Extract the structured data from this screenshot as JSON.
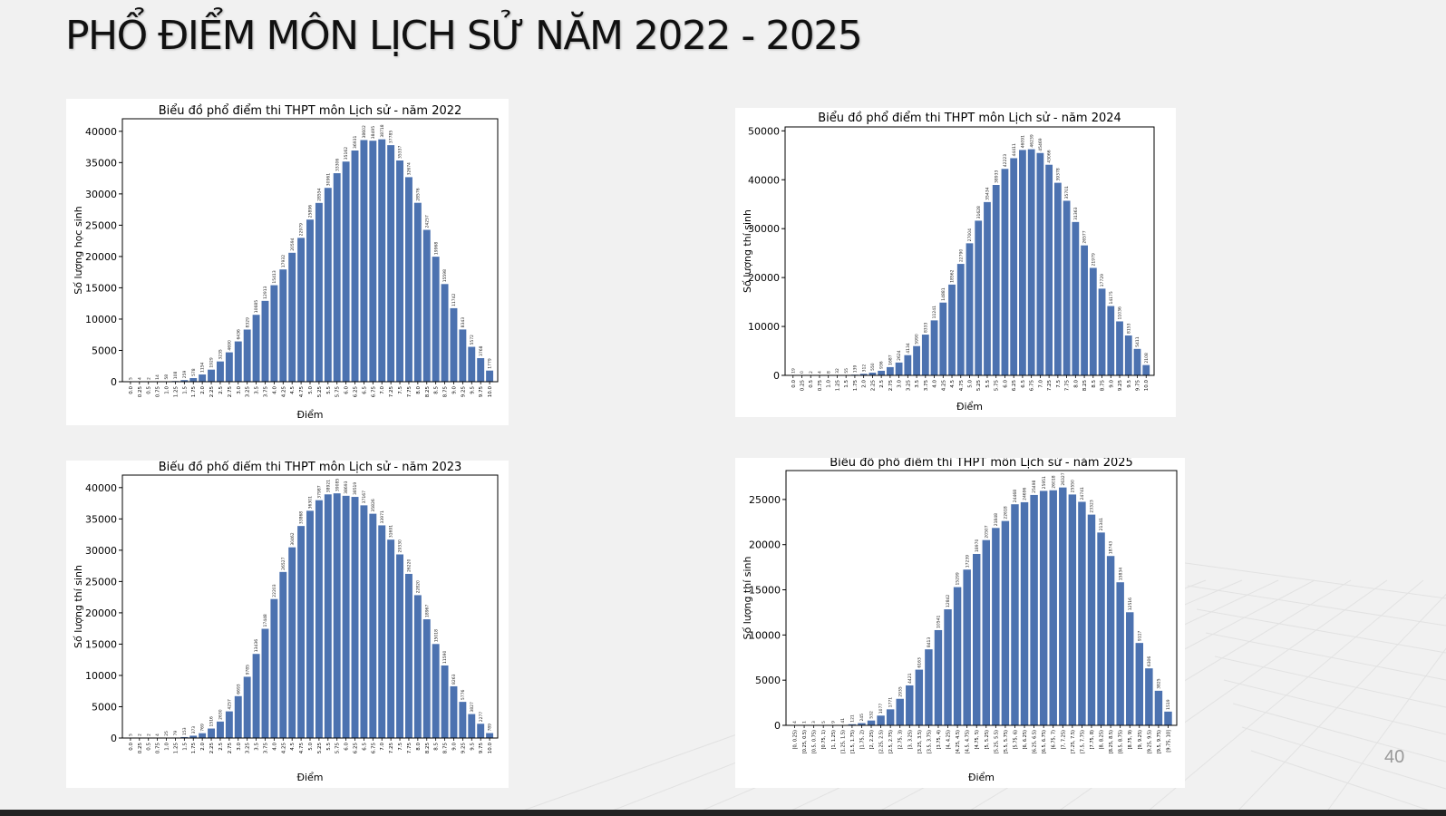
{
  "slide": {
    "title": "PHỔ ĐIỂM MÔN LỊCH SỬ NĂM 2022 - 2025",
    "page_number": "40"
  },
  "colors": {
    "bar": "#4c72b0",
    "background": "#f1f1f1",
    "panel": "#ffffff"
  },
  "chart_data": [
    {
      "type": "bar",
      "title": "Biểu đồ phổ điểm thi THPT môn Lịch sử - năm 2022",
      "xlabel": "Điểm",
      "ylabel": "Số lượng học sinh",
      "ylim": [
        0,
        42000
      ],
      "yticks": [
        0,
        5000,
        10000,
        15000,
        20000,
        25000,
        30000,
        35000,
        40000
      ],
      "categories": [
        "0.0",
        "0.25",
        "0.5",
        "0.75",
        "1.0",
        "1.25",
        "1.5",
        "1.75",
        "2.0",
        "2.25",
        "2.5",
        "2.75",
        "3.0",
        "3.25",
        "3.5",
        "3.75",
        "4.0",
        "4.25",
        "4.5",
        "4.75",
        "5.0",
        "5.25",
        "5.5",
        "5.75",
        "6.0",
        "6.25",
        "6.5",
        "6.75",
        "7.0",
        "7.25",
        "7.5",
        "7.75",
        "8.0",
        "8.25",
        "8.5",
        "8.75",
        "9.0",
        "9.25",
        "9.5",
        "9.75",
        "10.0"
      ],
      "values": [
        5,
        4,
        2,
        14,
        58,
        108,
        259,
        578,
        1154,
        1929,
        3235,
        4690,
        6436,
        8329,
        10685,
        12913,
        15413,
        17932,
        20594,
        22979,
        25896,
        28554,
        30961,
        33306,
        35162,
        36931,
        38602,
        38495,
        38718,
        37785,
        35337,
        32674,
        28576,
        24257,
        19968,
        15598,
        11742,
        8343,
        5572,
        3768,
        1779
      ],
      "grid": false,
      "legend": "none"
    },
    {
      "type": "bar",
      "title": "Biểu đồ phổ điểm thi THPT môn Lịch sử - năm 2023",
      "xlabel": "Điểm",
      "ylabel": "Số lượng thí sinh",
      "ylim": [
        0,
        42000
      ],
      "yticks": [
        0,
        5000,
        10000,
        15000,
        20000,
        25000,
        30000,
        35000,
        40000
      ],
      "categories": [
        "0.0",
        "0.25",
        "0.5",
        "0.75",
        "1.0",
        "1.25",
        "1.5",
        "1.75",
        "2.0",
        "2.25",
        "2.5",
        "2.75",
        "3.0",
        "3.25",
        "3.5",
        "3.75",
        "4.0",
        "4.25",
        "4.5",
        "4.75",
        "5.0",
        "5.25",
        "5.5",
        "5.75",
        "6.0",
        "6.25",
        "6.5",
        "6.75",
        "7.0",
        "7.25",
        "7.5",
        "7.75",
        "8.0",
        "8.25",
        "8.5",
        "8.75",
        "9.0",
        "9.25",
        "9.5",
        "9.75",
        "10.0"
      ],
      "values": [
        5,
        2,
        2,
        4,
        25,
        79,
        153,
        373,
        769,
        1516,
        2630,
        4257,
        6693,
        9785,
        13436,
        17448,
        22203,
        26527,
        30462,
        33868,
        36301,
        37987,
        38921,
        39085,
        38693,
        38519,
        37167,
        35826,
        33971,
        31691,
        29330,
        26220,
        22820,
        18967,
        15018,
        11590,
        8263,
        5776,
        3827,
        2277,
        789
      ],
      "grid": false,
      "legend": "none"
    },
    {
      "type": "bar",
      "title": "Biểu đồ phổ điểm thi THPT môn Lịch sử - năm 2024",
      "xlabel": "Điểm",
      "ylabel": "Số lượng thí sinh",
      "ylim": [
        0,
        50800
      ],
      "yticks": [
        0,
        10000,
        20000,
        30000,
        40000,
        50000
      ],
      "categories": [
        "0.0",
        "0.25",
        "0.5",
        "0.75",
        "1.0",
        "1.25",
        "1.5",
        "1.75",
        "2.0",
        "2.25",
        "2.5",
        "2.75",
        "3.0",
        "3.25",
        "3.5",
        "3.75",
        "4.0",
        "4.25",
        "4.5",
        "4.75",
        "5.0",
        "5.25",
        "5.5",
        "5.75",
        "6.0",
        "6.25",
        "6.5",
        "6.75",
        "7.0",
        "7.25",
        "7.5",
        "7.75",
        "8.0",
        "8.25",
        "8.5",
        "8.75",
        "9.0",
        "9.25",
        "9.5",
        "9.75",
        "10.0"
      ],
      "values": [
        19,
        0,
        2,
        4,
        8,
        32,
        55,
        139,
        312,
        550,
        936,
        1687,
        2624,
        4134,
        5990,
        8333,
        11241,
        14881,
        18562,
        22790,
        27004,
        31628,
        35434,
        38933,
        42223,
        44411,
        46091,
        46239,
        45469,
        43066,
        39378,
        35701,
        31363,
        26577,
        21979,
        17729,
        14175,
        11036,
        8153,
        5411,
        2108
      ],
      "grid": false,
      "legend": "none"
    },
    {
      "type": "bar",
      "title": "Biểu đồ phổ điểm thi THPT môn Lịch sử - năm 2025",
      "xlabel": "Điểm",
      "ylabel": "Số lượng thí sinh",
      "ylim": [
        0,
        28200
      ],
      "yticks": [
        0,
        5000,
        10000,
        15000,
        20000,
        25000
      ],
      "categories": [
        "[0, 0.25)",
        "[0.25, 0.5)",
        "[0.5, 0.75)",
        "[0.75, 1)",
        "[1, 1.25)",
        "[1.25, 1.5)",
        "[1.5, 1.75)",
        "[1.75, 2)",
        "[2, 2.25)",
        "[2.25, 2.5)",
        "[2.5, 2.75)",
        "[2.75, 3)",
        "[3, 3.25)",
        "[3.25, 3.5)",
        "[3.5, 3.75)",
        "[3.75, 4)",
        "[4, 4.25)",
        "[4.25, 4.5)",
        "[4.5, 4.75)",
        "[4.75, 5)",
        "[5, 5.25)",
        "[5.25, 5.5)",
        "[5.5, 5.75)",
        "[5.75, 6)",
        "[6, 6.25)",
        "[6.25, 6.5)",
        "[6.5, 6.75)",
        "[6.75, 7)",
        "[7, 7.25)",
        "[7.25, 7.5)",
        "[7.5, 7.75)",
        "[7.75, 8)",
        "[8, 8.25)",
        "[8.25, 8.5)",
        "[8.5, 8.75)",
        "[8.75, 9)",
        "[9, 9.25)",
        "[9.25, 9.5)",
        "[9.5, 9.75)",
        "[9.75, 10]"
      ],
      "values": [
        4,
        1,
        3,
        5,
        9,
        41,
        121,
        245,
        532,
        1077,
        1771,
        2935,
        4421,
        6163,
        8413,
        10541,
        12842,
        15299,
        17239,
        18970,
        20507,
        21848,
        22618,
        24468,
        24696,
        25498,
        25951,
        26018,
        26327,
        25550,
        24741,
        23323,
        21341,
        18743,
        15834,
        12516,
        9117,
        6306,
        3825,
        1519
      ],
      "grid": false,
      "legend": "none"
    }
  ]
}
